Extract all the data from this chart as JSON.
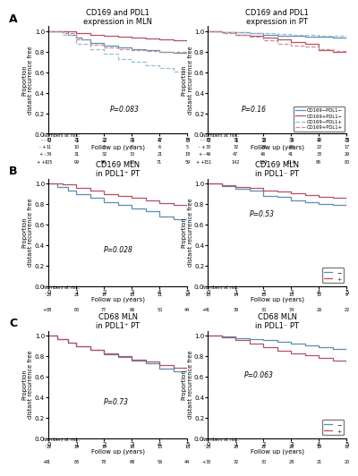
{
  "panel_A_left_title": "CD169 and PDL1\nexpression in MLN",
  "panel_A_right_title": "CD169 and PDL1\nexpression in PT",
  "panel_B_left_title": "CD169 MLN\nin PDL1⁺ PT",
  "panel_B_right_title": "CD169 MLN\nin PDL1⁻ PT",
  "panel_C_left_title": "CD68 MLN\nin PDL1⁺ PT",
  "panel_C_right_title": "CD68 MLN\nin PDL1⁻ PT",
  "A_p_left": "P=0.083",
  "A_p_right": "P=0.16",
  "B_p_left": "P=0.028",
  "B_p_right": "P=0.53",
  "C_p_left": "P=0.73",
  "C_p_right": "P=0.063",
  "legend_A": [
    "CD169−PDL1−",
    "CD169+PDL1−",
    "CD169−PDL1+",
    "CD169+PDL1+"
  ],
  "legend_BC": [
    "−",
    "+"
  ],
  "color_minus_dark": "#5b8db5",
  "color_plus_dark": "#b85060",
  "color_minus_light": "#9abfcf",
  "color_plus_light": "#cc9090",
  "color_minus": "#5b8db5",
  "color_plus": "#b85060",
  "A_left_curves": {
    "CD169-PDL1-": [
      [
        0,
        1
      ],
      [
        0.3,
        1
      ],
      [
        0.7,
        0.97
      ],
      [
        1,
        0.94
      ],
      [
        1.2,
        0.92
      ],
      [
        1.5,
        0.89
      ],
      [
        2,
        0.86
      ],
      [
        2.5,
        0.84
      ],
      [
        3,
        0.83
      ],
      [
        3.5,
        0.82
      ],
      [
        4,
        0.8
      ],
      [
        4.5,
        0.79
      ],
      [
        5,
        0.78
      ]
    ],
    "CD169+PDL1-": [
      [
        0,
        1
      ],
      [
        0.3,
        1
      ],
      [
        1,
        0.98
      ],
      [
        1.5,
        0.97
      ],
      [
        2,
        0.96
      ],
      [
        2.5,
        0.95
      ],
      [
        3,
        0.94
      ],
      [
        3.5,
        0.93
      ],
      [
        4,
        0.92
      ],
      [
        4.5,
        0.91
      ],
      [
        5,
        0.9
      ]
    ],
    "CD169-PDL1+": [
      [
        0,
        1
      ],
      [
        0.5,
        0.97
      ],
      [
        1,
        0.88
      ],
      [
        1.5,
        0.83
      ],
      [
        2,
        0.78
      ],
      [
        2.5,
        0.73
      ],
      [
        3,
        0.7
      ],
      [
        3.5,
        0.67
      ],
      [
        4,
        0.64
      ],
      [
        4.5,
        0.61
      ],
      [
        5,
        0.58
      ]
    ],
    "CD169+PDL1+": [
      [
        0,
        1
      ],
      [
        0.5,
        0.98
      ],
      [
        1,
        0.92
      ],
      [
        1.5,
        0.87
      ],
      [
        2,
        0.84
      ],
      [
        2.5,
        0.83
      ],
      [
        3,
        0.82
      ],
      [
        3.5,
        0.81
      ],
      [
        4,
        0.8
      ],
      [
        4.5,
        0.8
      ],
      [
        5,
        0.79
      ]
    ]
  },
  "A_right_curves": {
    "CD169-PDL1-": [
      [
        0,
        1
      ],
      [
        0.5,
        0.995
      ],
      [
        1,
        0.99
      ],
      [
        1.5,
        0.985
      ],
      [
        2,
        0.97
      ],
      [
        2.5,
        0.96
      ],
      [
        3,
        0.955
      ],
      [
        3.5,
        0.95
      ],
      [
        4,
        0.945
      ],
      [
        4.5,
        0.94
      ],
      [
        5,
        0.93
      ]
    ],
    "CD169+PDL1-": [
      [
        0,
        1
      ],
      [
        0.5,
        0.99
      ],
      [
        1,
        0.97
      ],
      [
        1.5,
        0.96
      ],
      [
        2,
        0.94
      ],
      [
        2.5,
        0.92
      ],
      [
        3,
        0.9
      ],
      [
        3.5,
        0.88
      ],
      [
        4,
        0.82
      ],
      [
        4.5,
        0.8
      ],
      [
        5,
        0.79
      ]
    ],
    "CD169-PDL1+": [
      [
        0,
        1
      ],
      [
        0.5,
        0.995
      ],
      [
        1,
        0.99
      ],
      [
        1.5,
        0.985
      ],
      [
        2,
        0.98
      ],
      [
        2.5,
        0.975
      ],
      [
        3,
        0.97
      ],
      [
        3.5,
        0.965
      ],
      [
        4,
        0.96
      ],
      [
        4.5,
        0.955
      ],
      [
        5,
        0.95
      ]
    ],
    "CD169+PDL1+": [
      [
        0,
        1
      ],
      [
        0.5,
        0.985
      ],
      [
        1,
        0.97
      ],
      [
        1.5,
        0.95
      ],
      [
        2,
        0.91
      ],
      [
        2.5,
        0.88
      ],
      [
        3,
        0.865
      ],
      [
        3.5,
        0.85
      ],
      [
        4,
        0.83
      ],
      [
        4.5,
        0.81
      ],
      [
        5,
        0.8
      ]
    ]
  },
  "B_left_curves": {
    "-": [
      [
        0,
        1
      ],
      [
        0.3,
        0.97
      ],
      [
        0.7,
        0.93
      ],
      [
        1,
        0.9
      ],
      [
        1.5,
        0.86
      ],
      [
        2,
        0.82
      ],
      [
        2.5,
        0.79
      ],
      [
        3,
        0.76
      ],
      [
        3.5,
        0.73
      ],
      [
        4,
        0.68
      ],
      [
        4.5,
        0.65
      ],
      [
        5,
        0.55
      ]
    ],
    "+": [
      [
        0,
        1
      ],
      [
        0.5,
        0.99
      ],
      [
        1,
        0.96
      ],
      [
        1.5,
        0.93
      ],
      [
        2,
        0.9
      ],
      [
        2.5,
        0.88
      ],
      [
        3,
        0.86
      ],
      [
        3.5,
        0.84
      ],
      [
        4,
        0.81
      ],
      [
        4.5,
        0.79
      ],
      [
        5,
        0.72
      ]
    ]
  },
  "B_right_curves": {
    "-": [
      [
        0,
        1
      ],
      [
        0.5,
        0.98
      ],
      [
        1,
        0.95
      ],
      [
        1.5,
        0.935
      ],
      [
        2,
        0.88
      ],
      [
        2.5,
        0.87
      ],
      [
        3,
        0.84
      ],
      [
        3.5,
        0.82
      ],
      [
        4,
        0.8
      ],
      [
        4.5,
        0.79
      ],
      [
        5,
        0.78
      ]
    ],
    "+": [
      [
        0,
        1
      ],
      [
        0.5,
        0.985
      ],
      [
        1,
        0.97
      ],
      [
        1.5,
        0.96
      ],
      [
        2,
        0.93
      ],
      [
        2.5,
        0.92
      ],
      [
        3,
        0.91
      ],
      [
        3.5,
        0.89
      ],
      [
        4,
        0.87
      ],
      [
        4.5,
        0.86
      ],
      [
        5,
        0.82
      ]
    ]
  },
  "C_left_curves": {
    "-": [
      [
        0,
        1
      ],
      [
        0.3,
        0.97
      ],
      [
        0.7,
        0.93
      ],
      [
        1,
        0.9
      ],
      [
        1.5,
        0.86
      ],
      [
        2,
        0.82
      ],
      [
        2.5,
        0.79
      ],
      [
        3,
        0.76
      ],
      [
        3.5,
        0.73
      ],
      [
        4,
        0.68
      ],
      [
        4.5,
        0.65
      ],
      [
        5,
        0.62
      ]
    ],
    "+": [
      [
        0,
        1
      ],
      [
        0.3,
        0.97
      ],
      [
        0.7,
        0.935
      ],
      [
        1,
        0.9
      ],
      [
        1.5,
        0.865
      ],
      [
        2,
        0.83
      ],
      [
        2.5,
        0.8
      ],
      [
        3,
        0.77
      ],
      [
        3.5,
        0.745
      ],
      [
        4,
        0.71
      ],
      [
        4.5,
        0.685
      ],
      [
        5,
        0.65
      ]
    ]
  },
  "C_right_curves": {
    "-": [
      [
        0,
        1
      ],
      [
        0.5,
        0.99
      ],
      [
        1,
        0.975
      ],
      [
        1.5,
        0.965
      ],
      [
        2,
        0.955
      ],
      [
        2.5,
        0.94
      ],
      [
        3,
        0.92
      ],
      [
        3.5,
        0.905
      ],
      [
        4,
        0.89
      ],
      [
        4.5,
        0.875
      ],
      [
        5,
        0.85
      ]
    ],
    "+": [
      [
        0,
        1
      ],
      [
        0.5,
        0.985
      ],
      [
        1,
        0.955
      ],
      [
        1.5,
        0.92
      ],
      [
        2,
        0.89
      ],
      [
        2.5,
        0.855
      ],
      [
        3,
        0.825
      ],
      [
        3.5,
        0.81
      ],
      [
        4,
        0.78
      ],
      [
        4.5,
        0.76
      ],
      [
        5,
        0.73
      ]
    ]
  },
  "A_left_risk": {
    "- -": [
      30,
      25,
      22,
      21,
      17,
      14
    ],
    "- +": [
      11,
      10,
      8,
      7,
      6,
      5
    ],
    "+ -": [
      34,
      31,
      32,
      30,
      21,
      18
    ],
    "+ +": [
      105,
      99,
      90,
      83,
      71,
      59
    ]
  },
  "A_right_risk": {
    "- -": [
      38,
      35,
      36,
      35,
      30,
      22
    ],
    "- +": [
      33,
      32,
      28,
      26,
      22,
      17
    ],
    "+ -": [
      49,
      47,
      46,
      41,
      33,
      29
    ],
    "+ +": [
      151,
      142,
      130,
      114,
      96,
      80
    ]
  },
  "B_left_risk": {
    "-": [
      25,
      21,
      17,
      15,
      11,
      10
    ],
    "+": [
      88,
      80,
      77,
      66,
      50,
      44
    ]
  },
  "B_right_risk": {
    "-": [
      15,
      14,
      13,
      13,
      12,
      9
    ],
    "+": [
      41,
      39,
      30,
      34,
      26,
      22
    ]
  },
  "C_left_risk": {
    "-": [
      22,
      19,
      19,
      16,
      13,
      13
    ],
    "+": [
      91,
      85,
      78,
      68,
      56,
      44
    ]
  },
  "C_right_risk": {
    "-": [
      23,
      20,
      22,
      29,
      19,
      12
    ],
    "+": [
      33,
      32,
      30,
      28,
      21,
      20
    ]
  },
  "xlabel": "Follow up (years)",
  "ylabel": "Proportion\ndistant recurrence free",
  "xlim": [
    0,
    5
  ],
  "ylim": [
    0,
    1.05
  ],
  "xticks": [
    0,
    1,
    2,
    3,
    4,
    5
  ],
  "yticks": [
    0,
    0.2,
    0.4,
    0.6,
    0.8,
    1.0
  ]
}
